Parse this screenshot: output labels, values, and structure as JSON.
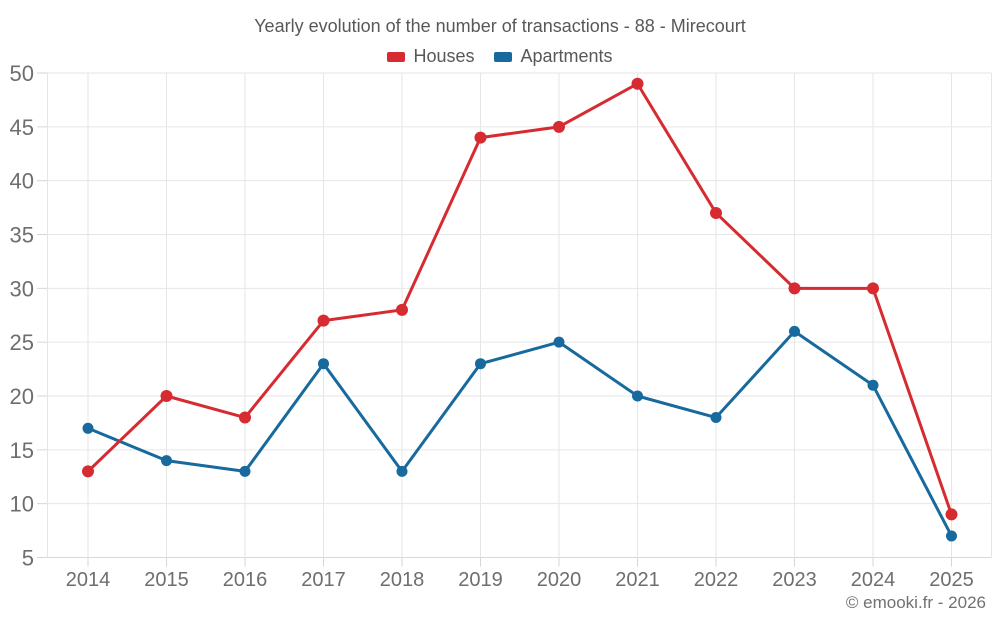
{
  "title": "Yearly evolution of the number of transactions - 88 - Mirecourt",
  "footer": "© emooki.fr - 2026",
  "colors": {
    "houses": "#d62b30",
    "apartments": "#17699e",
    "grid": "#e6e6e6",
    "baseline": "#d9d9d9",
    "tick": "#d6d6d6",
    "axis_text": "#6e6e6e",
    "title_text": "#58585a"
  },
  "chart_data": {
    "type": "line",
    "title": "Yearly evolution of the number of transactions - 88 - Mirecourt",
    "x": [
      2014,
      2015,
      2016,
      2017,
      2018,
      2019,
      2020,
      2021,
      2022,
      2023,
      2024,
      2025
    ],
    "series": [
      {
        "name": "Houses",
        "color": "#d62b30",
        "values": [
          13,
          20,
          18,
          27,
          28,
          44,
          45,
          49,
          37,
          30,
          30,
          9
        ]
      },
      {
        "name": "Apartments",
        "color": "#17699e",
        "values": [
          17,
          14,
          13,
          23,
          13,
          23,
          25,
          20,
          18,
          26,
          21,
          7
        ]
      }
    ],
    "ylim": [
      5,
      50
    ],
    "yticks": [
      5,
      10,
      15,
      20,
      25,
      30,
      35,
      40,
      45,
      50
    ],
    "xlabel": "",
    "ylabel": "",
    "grid": true,
    "legend_position": "top"
  }
}
